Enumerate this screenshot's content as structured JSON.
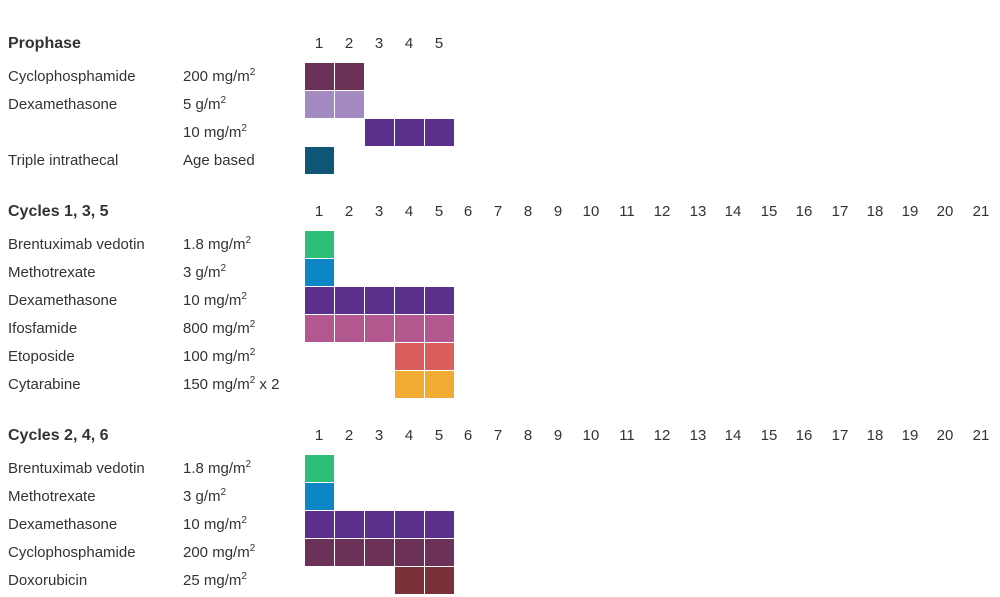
{
  "colors": {
    "cyclophosphamide": "#6b3157",
    "dexamethasone_prophase_high": "#a38ac0",
    "dexamethasone": "#5b2f8c",
    "triple_intrathecal": "#0e5577",
    "brentuximab": "#2ebd78",
    "methotrexate": "#0c86c4",
    "ifosfamide": "#b3578f",
    "etoposide": "#d95e5c",
    "cytarabine": "#f1ab32",
    "doxorubicin": "#7a3038"
  },
  "sections": [
    {
      "title": "Prophase",
      "days": [
        "1",
        "2",
        "3",
        "4",
        "5"
      ],
      "rows": [
        {
          "drug": "Cyclophosphamide",
          "dose": "200 mg/m",
          "dose_sup": "2",
          "dose_suffix": "",
          "active_days": [
            1,
            2
          ],
          "color_key": "cyclophosphamide"
        },
        {
          "drug": "Dexamethasone",
          "dose": "5 g/m",
          "dose_sup": "2",
          "dose_suffix": "",
          "active_days": [
            1,
            2
          ],
          "color_key": "dexamethasone_prophase_high"
        },
        {
          "drug": "",
          "dose": "10 mg/m",
          "dose_sup": "2",
          "dose_suffix": "",
          "active_days": [
            3,
            4,
            5
          ],
          "color_key": "dexamethasone"
        },
        {
          "drug": "Triple intrathecal",
          "dose": "Age based",
          "dose_sup": "",
          "dose_suffix": "",
          "active_days": [
            1
          ],
          "color_key": "triple_intrathecal"
        }
      ]
    },
    {
      "title": "Cycles 1, 3, 5",
      "days": [
        "1",
        "2",
        "3",
        "4",
        "5",
        "6",
        "7",
        "8",
        "9",
        "10",
        "11",
        "12",
        "13",
        "14",
        "15",
        "16",
        "17",
        "18",
        "19",
        "20",
        "21"
      ],
      "rows": [
        {
          "drug": "Brentuximab vedotin",
          "dose": "1.8 mg/m",
          "dose_sup": "2",
          "dose_suffix": "",
          "active_days": [
            1
          ],
          "color_key": "brentuximab"
        },
        {
          "drug": "Methotrexate",
          "dose": "3 g/m",
          "dose_sup": "2",
          "dose_suffix": "",
          "active_days": [
            1
          ],
          "color_key": "methotrexate"
        },
        {
          "drug": "Dexamethasone",
          "dose": "10 mg/m",
          "dose_sup": "2",
          "dose_suffix": "",
          "active_days": [
            1,
            2,
            3,
            4,
            5
          ],
          "color_key": "dexamethasone"
        },
        {
          "drug": "Ifosfamide",
          "dose": "800 mg/m",
          "dose_sup": "2",
          "dose_suffix": "",
          "active_days": [
            1,
            2,
            3,
            4,
            5
          ],
          "color_key": "ifosfamide"
        },
        {
          "drug": "Etoposide",
          "dose": "100 mg/m",
          "dose_sup": "2",
          "dose_suffix": "",
          "active_days": [
            4,
            5
          ],
          "color_key": "etoposide"
        },
        {
          "drug": "Cytarabine",
          "dose": "150 mg/m",
          "dose_sup": "2",
          "dose_suffix": " x 2",
          "active_days": [
            4,
            5
          ],
          "color_key": "cytarabine"
        }
      ]
    },
    {
      "title": "Cycles 2, 4, 6",
      "days": [
        "1",
        "2",
        "3",
        "4",
        "5",
        "6",
        "7",
        "8",
        "9",
        "10",
        "11",
        "12",
        "13",
        "14",
        "15",
        "16",
        "17",
        "18",
        "19",
        "20",
        "21"
      ],
      "rows": [
        {
          "drug": "Brentuximab vedotin",
          "dose": "1.8 mg/m",
          "dose_sup": "2",
          "dose_suffix": "",
          "active_days": [
            1
          ],
          "color_key": "brentuximab"
        },
        {
          "drug": "Methotrexate",
          "dose": "3 g/m",
          "dose_sup": "2",
          "dose_suffix": "",
          "active_days": [
            1
          ],
          "color_key": "methotrexate"
        },
        {
          "drug": "Dexamethasone",
          "dose": "10 mg/m",
          "dose_sup": "2",
          "dose_suffix": "",
          "active_days": [
            1,
            2,
            3,
            4,
            5
          ],
          "color_key": "dexamethasone"
        },
        {
          "drug": "Cyclophosphamide",
          "dose": "200 mg/m",
          "dose_sup": "2",
          "dose_suffix": "",
          "active_days": [
            1,
            2,
            3,
            4,
            5
          ],
          "color_key": "cyclophosphamide"
        },
        {
          "drug": "Doxorubicin",
          "dose": "25 mg/m",
          "dose_sup": "2",
          "dose_suffix": "",
          "active_days": [
            4,
            5
          ],
          "color_key": "doxorubicin"
        }
      ]
    }
  ]
}
